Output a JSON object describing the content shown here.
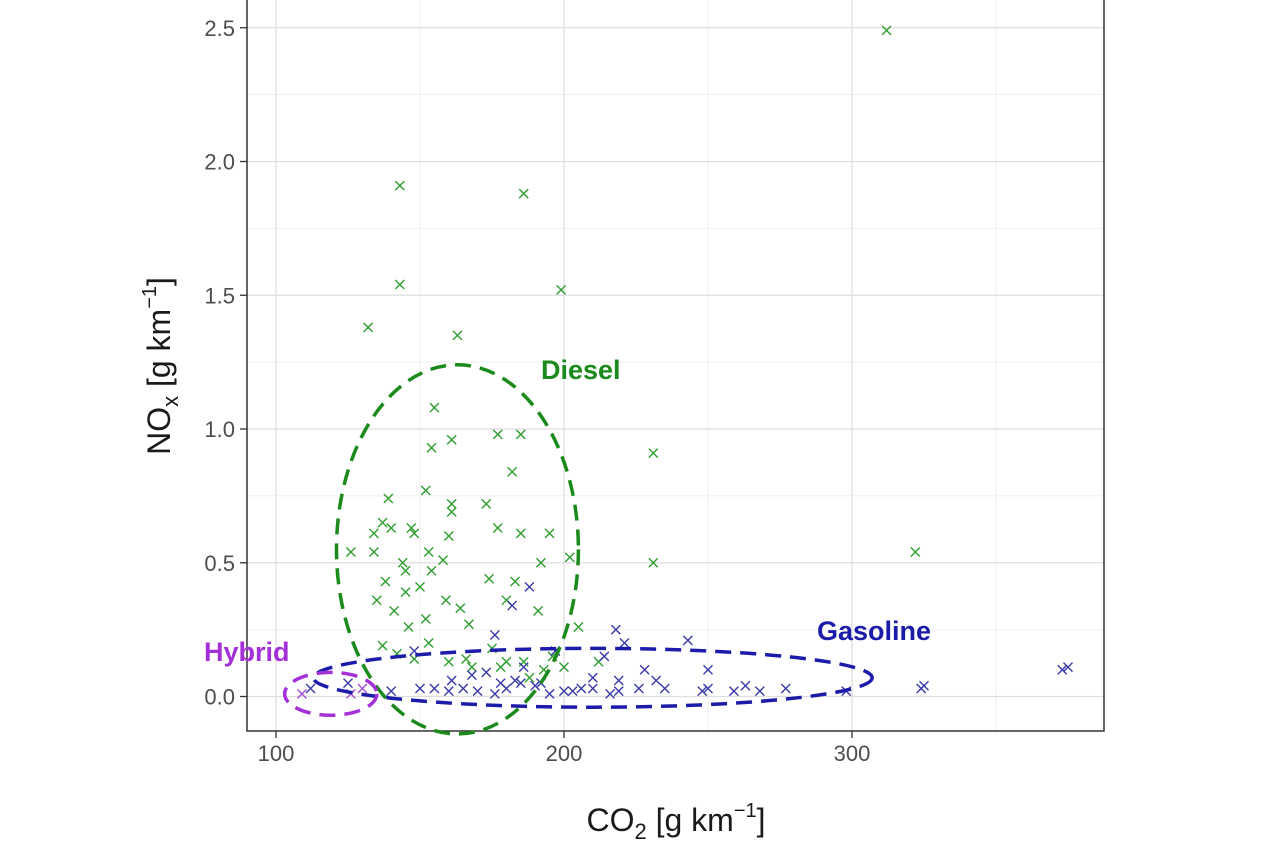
{
  "chart_data": {
    "type": "scatter",
    "title": "",
    "xlabel": {
      "main": "CO",
      "sub": "2",
      "unit_pre": " [g km",
      "unit_sup": "−1",
      "unit_post": "]"
    },
    "ylabel": {
      "main": "NO",
      "sub": "x",
      "unit_pre": " [g km",
      "unit_sup": "−1",
      "unit_post": "]"
    },
    "xlim": [
      94,
      388
    ],
    "ylim": [
      -0.13,
      2.64
    ],
    "xticks": [
      100,
      200,
      300
    ],
    "yticks": [
      0.0,
      0.5,
      1.0,
      1.5,
      2.0,
      2.5
    ],
    "ytick_labels": [
      "0.0",
      "0.5",
      "1.0",
      "1.5",
      "2.0",
      "2.5"
    ],
    "grid": true,
    "marker": "x",
    "series": [
      {
        "name": "Diesel",
        "color": "#2e9e2e",
        "points": [
          [
            312,
            2.49
          ],
          [
            143,
            1.91
          ],
          [
            186,
            1.88
          ],
          [
            199,
            1.52
          ],
          [
            143,
            1.54
          ],
          [
            132,
            1.38
          ],
          [
            163,
            1.35
          ],
          [
            231,
            0.91
          ],
          [
            322,
            0.54
          ],
          [
            231,
            0.5
          ],
          [
            155,
            1.08
          ],
          [
            177,
            0.98
          ],
          [
            185,
            0.98
          ],
          [
            161,
            0.96
          ],
          [
            154,
            0.93
          ],
          [
            182,
            0.84
          ],
          [
            152,
            0.77
          ],
          [
            139,
            0.74
          ],
          [
            161,
            0.72
          ],
          [
            173,
            0.72
          ],
          [
            161,
            0.69
          ],
          [
            137,
            0.65
          ],
          [
            140,
            0.63
          ],
          [
            147,
            0.63
          ],
          [
            177,
            0.63
          ],
          [
            148,
            0.61
          ],
          [
            134,
            0.61
          ],
          [
            160,
            0.6
          ],
          [
            185,
            0.61
          ],
          [
            195,
            0.61
          ],
          [
            126,
            0.54
          ],
          [
            134,
            0.54
          ],
          [
            153,
            0.54
          ],
          [
            158,
            0.51
          ],
          [
            144,
            0.5
          ],
          [
            192,
            0.5
          ],
          [
            202,
            0.52
          ],
          [
            145,
            0.47
          ],
          [
            154,
            0.47
          ],
          [
            138,
            0.43
          ],
          [
            150,
            0.41
          ],
          [
            174,
            0.44
          ],
          [
            183,
            0.43
          ],
          [
            135,
            0.36
          ],
          [
            145,
            0.39
          ],
          [
            159,
            0.36
          ],
          [
            180,
            0.36
          ],
          [
            141,
            0.32
          ],
          [
            152,
            0.29
          ],
          [
            164,
            0.33
          ],
          [
            191,
            0.32
          ],
          [
            146,
            0.26
          ],
          [
            167,
            0.27
          ],
          [
            205,
            0.26
          ],
          [
            137,
            0.19
          ],
          [
            175,
            0.18
          ],
          [
            148,
            0.14
          ],
          [
            153,
            0.2
          ],
          [
            160,
            0.13
          ],
          [
            166,
            0.14
          ],
          [
            180,
            0.13
          ],
          [
            186,
            0.13
          ],
          [
            196,
            0.15
          ],
          [
            212,
            0.13
          ],
          [
            168,
            0.11
          ],
          [
            178,
            0.11
          ],
          [
            142,
            0.16
          ],
          [
            200,
            0.11
          ],
          [
            188,
            0.07
          ],
          [
            193,
            0.1
          ]
        ]
      },
      {
        "name": "Gasoline",
        "color": "#3a3aa8",
        "points": [
          [
            375,
            0.11
          ],
          [
            373,
            0.1
          ],
          [
            324,
            0.03
          ],
          [
            325,
            0.04
          ],
          [
            243,
            0.21
          ],
          [
            218,
            0.25
          ],
          [
            221,
            0.2
          ],
          [
            176,
            0.23
          ],
          [
            182,
            0.34
          ],
          [
            188,
            0.41
          ],
          [
            197,
            0.17
          ],
          [
            214,
            0.15
          ],
          [
            250,
            0.1
          ],
          [
            210,
            0.07
          ],
          [
            219,
            0.06
          ],
          [
            228,
            0.1
          ],
          [
            232,
            0.06
          ],
          [
            226,
            0.03
          ],
          [
            235,
            0.03
          ],
          [
            248,
            0.02
          ],
          [
            250,
            0.03
          ],
          [
            263,
            0.04
          ],
          [
            268,
            0.02
          ],
          [
            259,
            0.02
          ],
          [
            277,
            0.03
          ],
          [
            298,
            0.02
          ],
          [
            206,
            0.03
          ],
          [
            210,
            0.03
          ],
          [
            216,
            0.01
          ],
          [
            219,
            0.02
          ],
          [
            195,
            0.01
          ],
          [
            200,
            0.02
          ],
          [
            203,
            0.02
          ],
          [
            190,
            0.04
          ],
          [
            185,
            0.05
          ],
          [
            180,
            0.03
          ],
          [
            183,
            0.06
          ],
          [
            178,
            0.05
          ],
          [
            170,
            0.02
          ],
          [
            165,
            0.03
          ],
          [
            168,
            0.08
          ],
          [
            160,
            0.02
          ],
          [
            155,
            0.03
          ],
          [
            150,
            0.03
          ],
          [
            173,
            0.09
          ],
          [
            186,
            0.11
          ],
          [
            112,
            0.03
          ],
          [
            125,
            0.05
          ],
          [
            140,
            0.02
          ],
          [
            176,
            0.01
          ],
          [
            161,
            0.06
          ],
          [
            192,
            0.05
          ],
          [
            148,
            0.17
          ]
        ]
      },
      {
        "name": "Hybrid",
        "color": "#a64ccf",
        "points": [
          [
            109,
            0.01
          ],
          [
            126,
            0.01
          ],
          [
            130,
            0.03
          ]
        ]
      }
    ],
    "annotations": [
      {
        "text": "Diesel",
        "color": "#1a8a1a",
        "ellipse": {
          "cx": 163,
          "cy": 0.55,
          "rx": 42,
          "ry": 0.69
        }
      },
      {
        "text": "Gasoline",
        "color": "#1c1caa",
        "ellipse": {
          "cx": 210,
          "cy": 0.07,
          "rx": 97,
          "ry": 0.11
        }
      },
      {
        "text": "Hybrid",
        "color": "#a431d8",
        "ellipse": {
          "cx": 119,
          "cy": 0.01,
          "rx": 16,
          "ry": 0.08
        }
      }
    ]
  }
}
